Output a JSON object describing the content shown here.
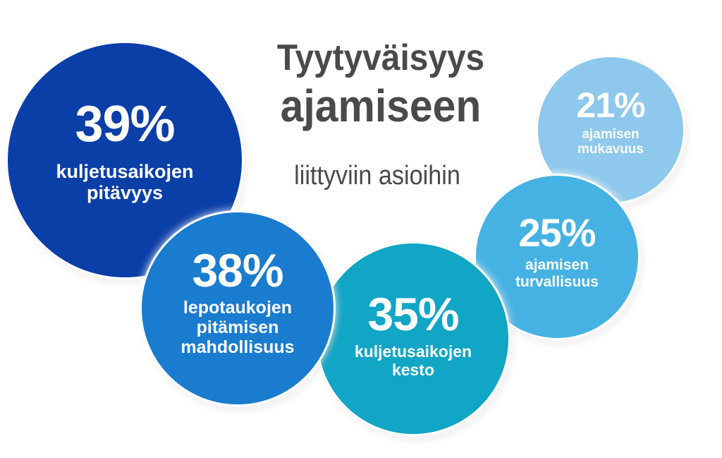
{
  "chart_data": {
    "type": "bubble",
    "title": "Tyytyväisyys ajamiseen",
    "title_line1": "Tyytyväisyys",
    "title_line2": "ajamiseen",
    "subtitle": "liittyviin asioihin",
    "series": [
      {
        "id": "b39",
        "value": 39,
        "pct_label": "39%",
        "label": "kuljetusaikojen\npitävyys",
        "color": "#0b3fa8"
      },
      {
        "id": "b38",
        "value": 38,
        "pct_label": "38%",
        "label": "lepotaukojen\npitämisen\nmahdollisuus",
        "color": "#1a7ccf"
      },
      {
        "id": "b35",
        "value": 35,
        "pct_label": "35%",
        "label": "kuljetusaikojen\nkesto",
        "color": "#11a5c6"
      },
      {
        "id": "b25",
        "value": 25,
        "pct_label": "25%",
        "label": "ajamisen\nturvallisuus",
        "color": "#45b2e3"
      },
      {
        "id": "b21",
        "value": 21,
        "pct_label": "21%",
        "label": "ajamisen\nmukavuus",
        "color": "#8ec8ec"
      }
    ]
  }
}
